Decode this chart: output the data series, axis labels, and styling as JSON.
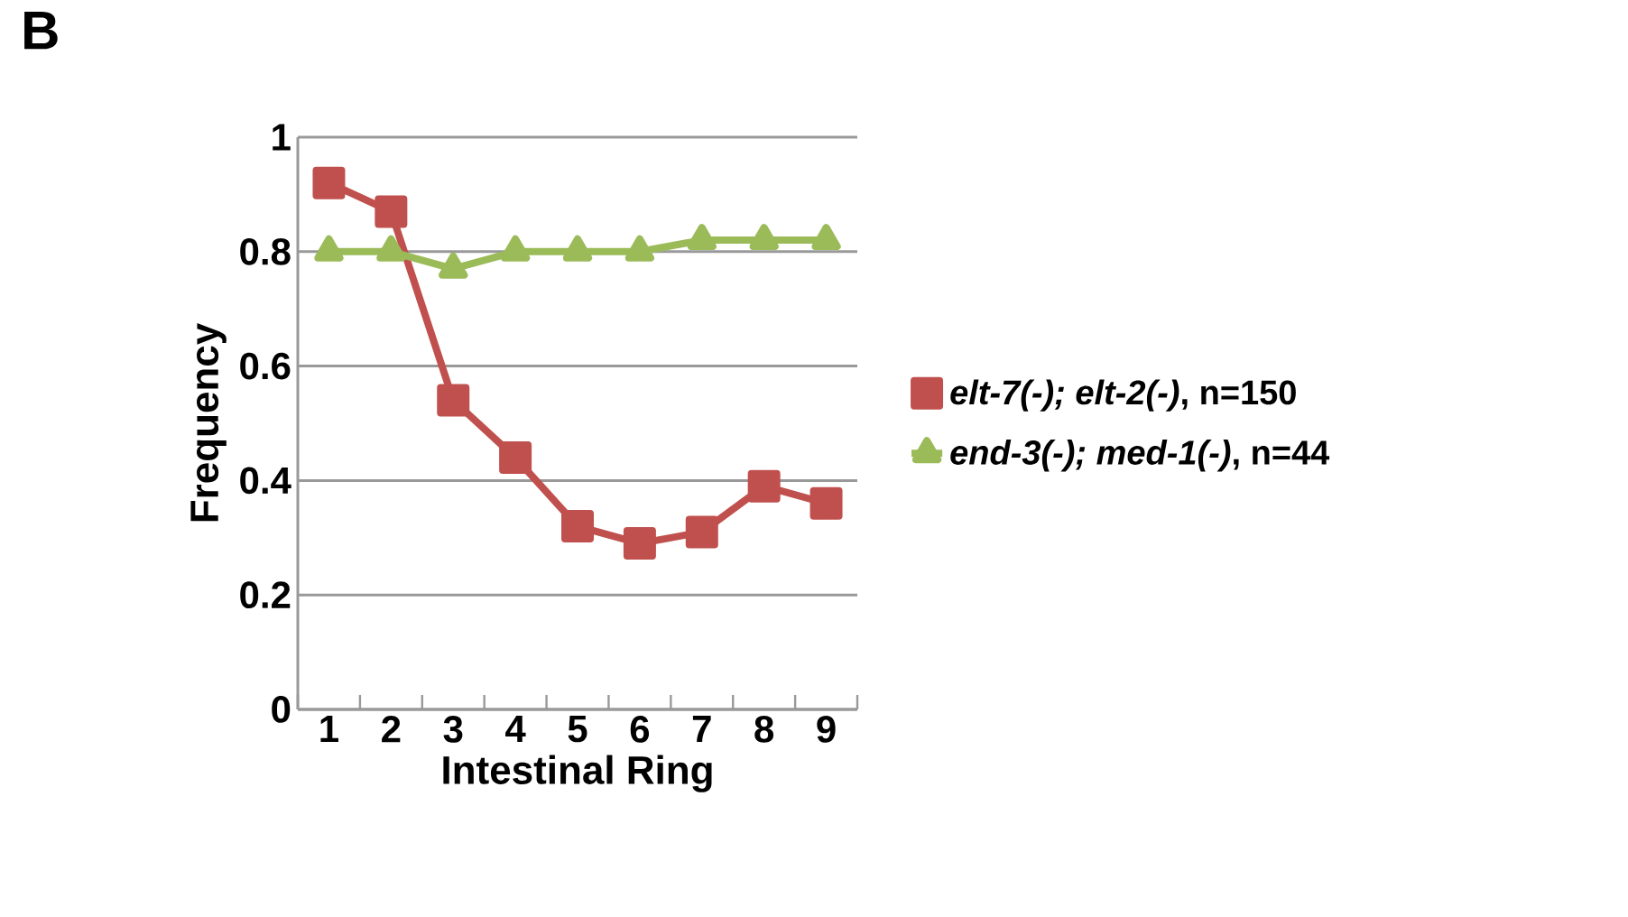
{
  "chart_data": {
    "type": "line",
    "xlabel": "Intestinal Ring",
    "ylabel": "Frequency",
    "annotations": [
      "B"
    ],
    "categories": [
      "1",
      "2",
      "3",
      "4",
      "5",
      "6",
      "7",
      "8",
      "9"
    ],
    "series": [
      {
        "name": "*elt-7(-); elt-2(-)*, n=150",
        "color": "#c0504d",
        "marker": "square",
        "values": [
          0.92,
          0.87,
          0.54,
          0.44,
          0.32,
          0.29,
          0.31,
          0.39,
          0.36
        ]
      },
      {
        "name": "*end-3(-); med-1(-)*, n=44",
        "color": "#9bbb59",
        "marker": "triangle",
        "values": [
          0.8,
          0.8,
          0.77,
          0.8,
          0.8,
          0.8,
          0.82,
          0.82,
          0.82
        ]
      }
    ],
    "ylim": [
      0,
      1
    ],
    "yticks": [
      0,
      0.2,
      0.4,
      0.6,
      0.8,
      1
    ],
    "grid": "y",
    "legend": "right"
  }
}
